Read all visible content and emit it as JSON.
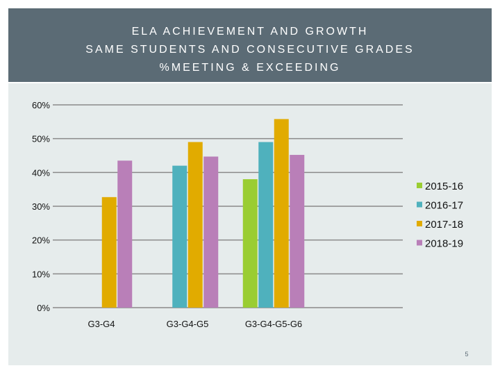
{
  "header": {
    "title_lines": [
      "ELA ACHIEVEMENT AND GROWTH",
      "SAME STUDENTS AND CONSECUTIVE GRADES",
      "%MEETING & EXCEEDING"
    ]
  },
  "slide_number": "5",
  "colors": {
    "header_bg": "#5b6b75",
    "panel_bg": "#e6ecec",
    "series": [
      "#9acd32",
      "#4fb1bd",
      "#e1ab00",
      "#b97fb8"
    ]
  },
  "chart_data": {
    "type": "bar",
    "title": "ELA ACHIEVEMENT AND GROWTH SAME STUDENTS AND CONSECUTIVE GRADES %MEETING & EXCEEDING",
    "xlabel": "",
    "ylabel": "",
    "ylim": [
      0,
      60
    ],
    "yticks": [
      0,
      10,
      20,
      30,
      40,
      50,
      60
    ],
    "ytick_labels": [
      "0%",
      "10%",
      "20%",
      "30%",
      "40%",
      "50%",
      "60%"
    ],
    "grid": true,
    "legend_position": "right",
    "categories": [
      "G3-G4",
      "G3-G4-G5",
      "G3-G4-G5-G6",
      ""
    ],
    "series": [
      {
        "name": "2015-16",
        "values": [
          null,
          null,
          38,
          null
        ]
      },
      {
        "name": "2016-17",
        "values": [
          null,
          42,
          49,
          null
        ]
      },
      {
        "name": "2017-18",
        "values": [
          32.7,
          49,
          55.8,
          null
        ]
      },
      {
        "name": "2018-19",
        "values": [
          43.5,
          44.7,
          45.2,
          null
        ]
      }
    ]
  }
}
